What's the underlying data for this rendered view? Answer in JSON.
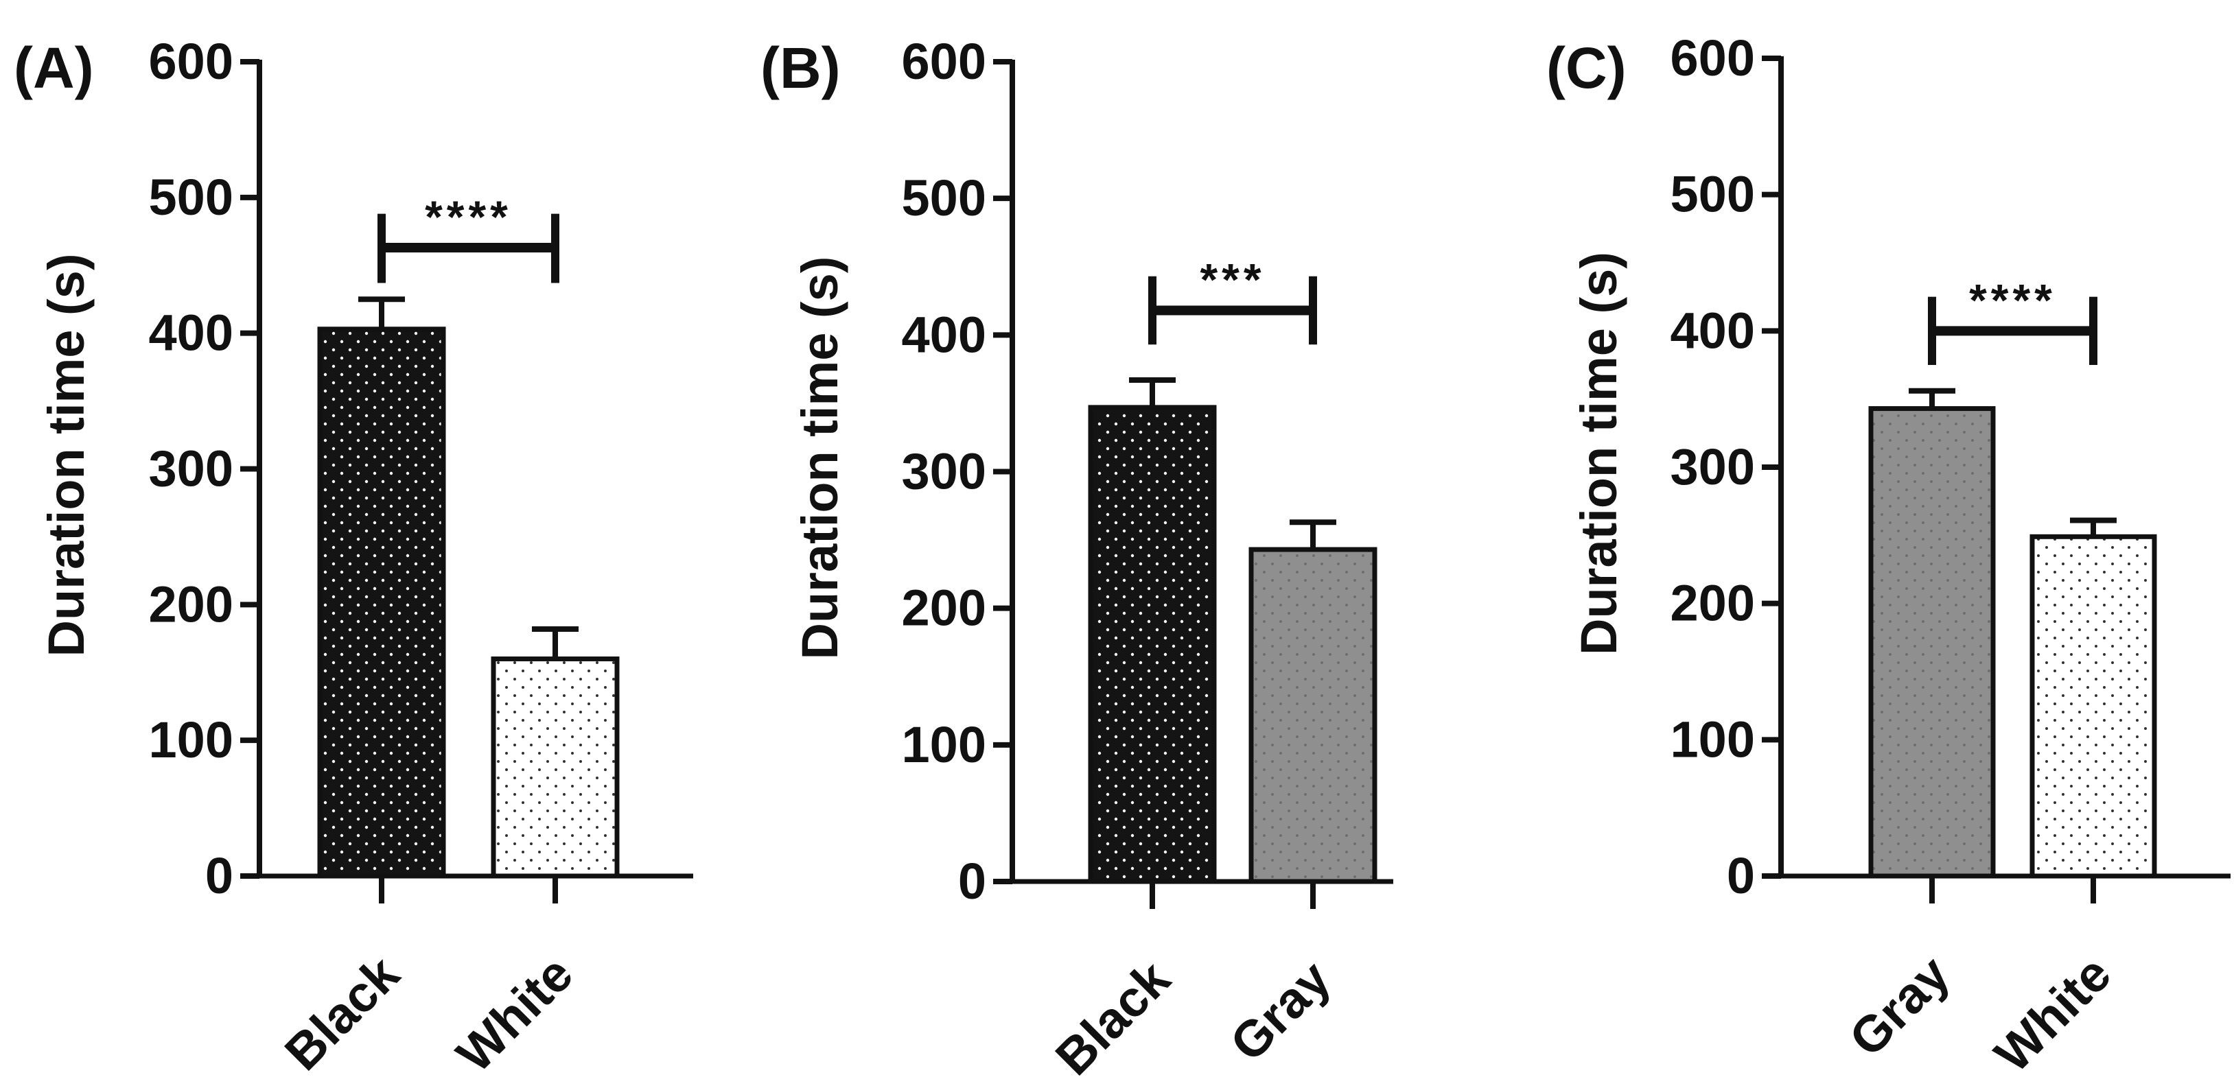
{
  "colors": {
    "axis": "#111111",
    "black_bar": "#141414",
    "gray_bar": "#8f8f8f",
    "white_bar": "#ffffff",
    "dot_on_dark": "#ffffff",
    "dot_on_light": "#333333"
  },
  "chart_data": [
    {
      "type": "bar",
      "panel_label": "(A)",
      "ylabel": "Duration time (s)",
      "ylim": [
        0,
        600
      ],
      "yticks": [
        "0",
        "100",
        "200",
        "300",
        "400",
        "500",
        "600"
      ],
      "categories": [
        "Black",
        "White"
      ],
      "values": [
        403,
        160
      ],
      "errors": [
        22,
        22
      ],
      "fills": [
        "black",
        "white"
      ],
      "significance": {
        "label": "****",
        "y": 463,
        "cap_bottom": 437,
        "cap_top": 488
      }
    },
    {
      "type": "bar",
      "panel_label": "(B)",
      "ylabel": "Duration time (s)",
      "ylim": [
        0,
        600
      ],
      "yticks": [
        "0",
        "100",
        "200",
        "300",
        "400",
        "500",
        "600"
      ],
      "categories": [
        "Black",
        "Gray"
      ],
      "values": [
        347,
        243
      ],
      "errors": [
        20,
        20
      ],
      "fills": [
        "black",
        "gray"
      ],
      "significance": {
        "label": "***",
        "y": 418,
        "cap_bottom": 393,
        "cap_top": 443
      }
    },
    {
      "type": "bar",
      "panel_label": "(C)",
      "ylabel": "Duration time (s)",
      "ylim": [
        0,
        600
      ],
      "yticks": [
        "0",
        "100",
        "200",
        "300",
        "400",
        "500",
        "600"
      ],
      "categories": [
        "Gray",
        "White"
      ],
      "values": [
        343,
        249
      ],
      "errors": [
        13,
        12
      ],
      "fills": [
        "gray",
        "white"
      ],
      "significance": {
        "label": "****",
        "y": 400,
        "cap_bottom": 375,
        "cap_top": 425
      }
    }
  ]
}
